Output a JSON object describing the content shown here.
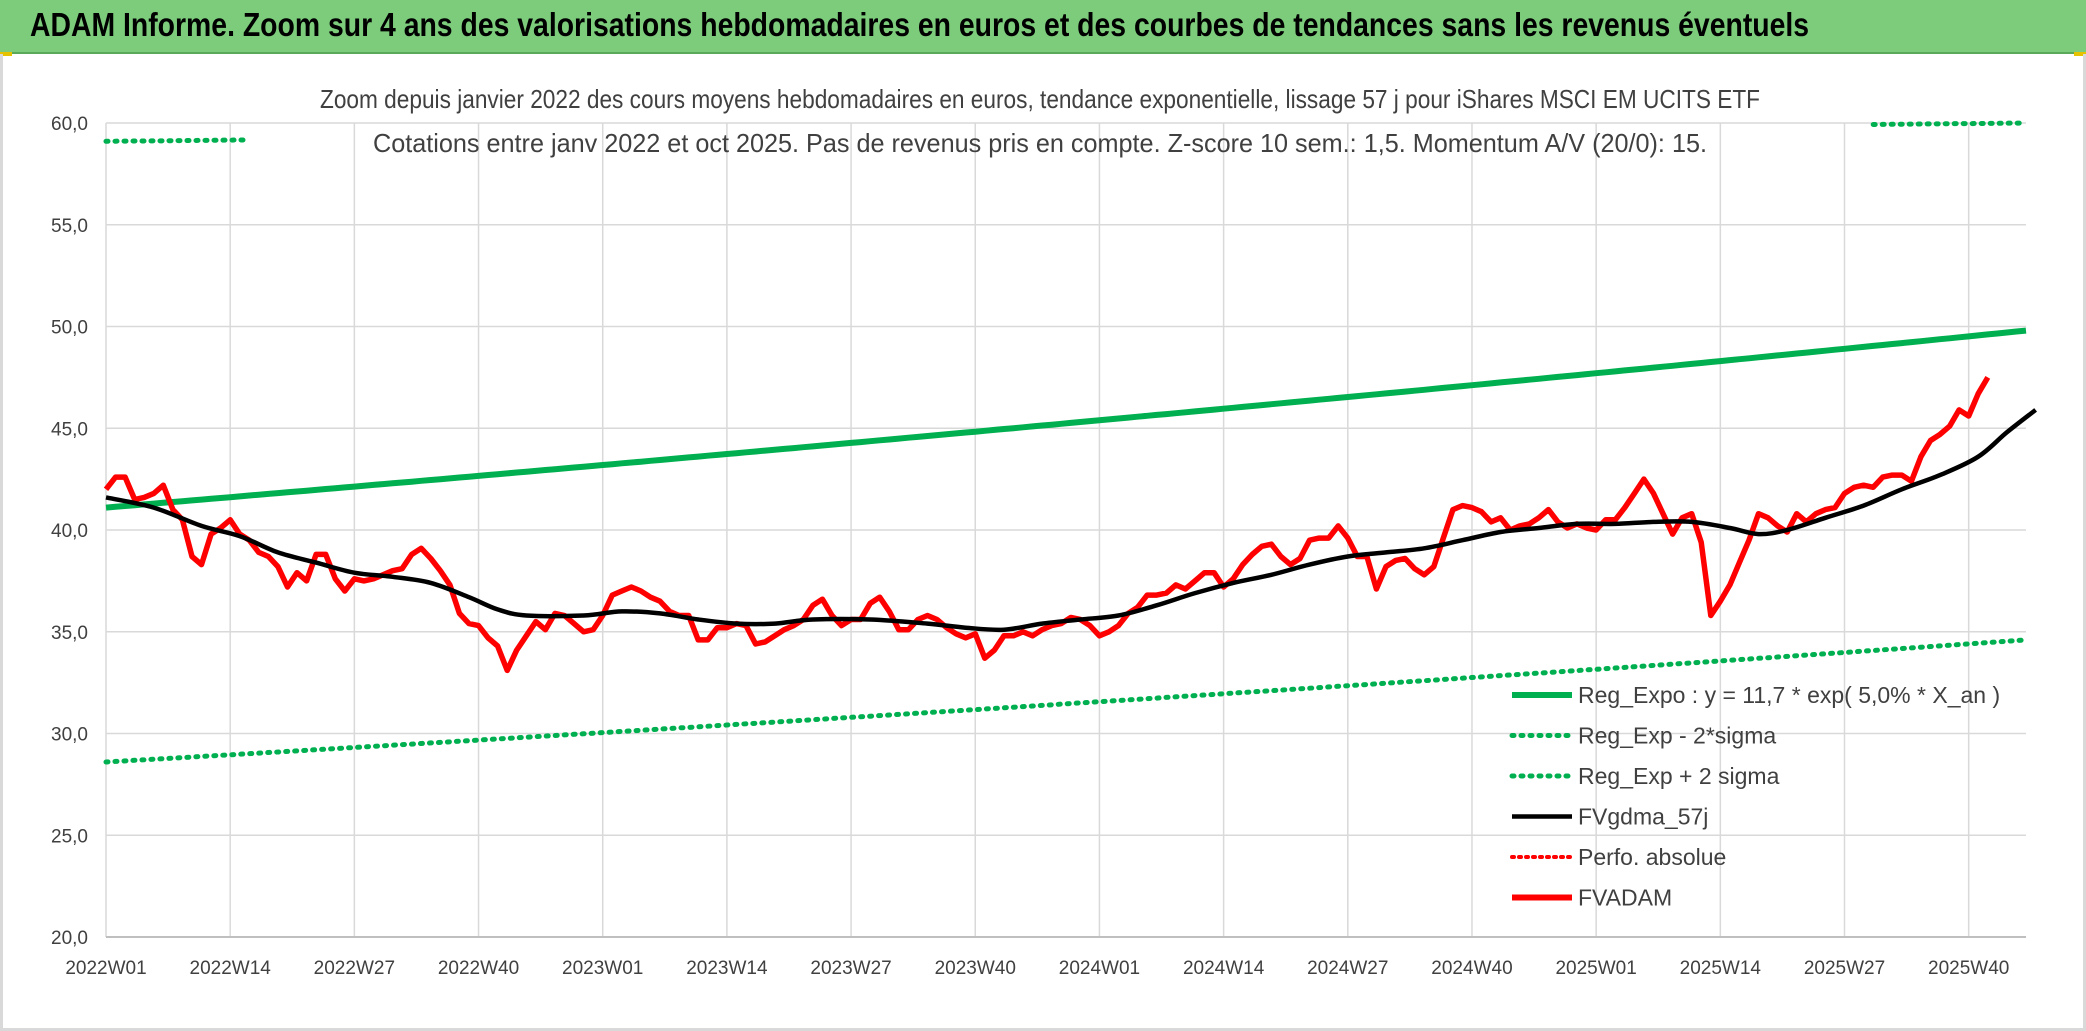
{
  "banner": {
    "title": "ADAM Informe. Zoom sur 4 ans des valorisations hebdomadaires en euros et des courbes de tendances sans les revenus éventuels"
  },
  "chart_data": {
    "type": "line",
    "title_line1": "Zoom depuis janvier 2022 des cours moyens hebdomadaires en euros, tendance exponentielle, lissage 57 j pour iShares MSCI EM UCITS ETF",
    "title_line2": "Cotations entre janv 2022 et oct 2025. Pas de revenus pris en compte. Z-score 10 sem.: 1,5. Momentum A/V (20/0): 15.",
    "x_ticks": [
      "2022W01",
      "2022W14",
      "2022W27",
      "2022W40",
      "2023W01",
      "2023W14",
      "2023W27",
      "2023W40",
      "2024W01",
      "2024W14",
      "2024W27",
      "2024W40",
      "2025W01",
      "2025W14",
      "2025W27",
      "2025W40"
    ],
    "x_tick_index": [
      0,
      13,
      26,
      39,
      52,
      65,
      78,
      91,
      104,
      117,
      130,
      143,
      156,
      169,
      182,
      195
    ],
    "n_weeks": 202,
    "y_ticks": [
      "20,0",
      "25,0",
      "30,0",
      "35,0",
      "40,0",
      "45,0",
      "50,0",
      "55,0",
      "60,0"
    ],
    "ylim": [
      20,
      60
    ],
    "grid": true,
    "legend_position": "bottom-right",
    "colors": {
      "reg_expo": "#00b050",
      "sigma": "#00b050",
      "fvgdma": "#000000",
      "perfo": "#ff0000",
      "fvadam": "#ff0000"
    },
    "legend": [
      {
        "key": "reg_expo",
        "label": "Reg_Expo : y = 11,7 * exp( 5,0% *  X_an )",
        "style": "solid-thick"
      },
      {
        "key": "sigma_minus",
        "label": "Reg_Exp - 2*sigma",
        "style": "dotted"
      },
      {
        "key": "sigma_plus",
        "label": "Reg_Exp + 2 sigma",
        "style": "dotted"
      },
      {
        "key": "fvgdma",
        "label": "FVgdma_57j",
        "style": "solid"
      },
      {
        "key": "perfo",
        "label": "Perfo. absolue",
        "style": "dotted-red"
      },
      {
        "key": "fvadam",
        "label": "FVADAM",
        "style": "solid-thick-red"
      }
    ],
    "series": [
      {
        "name": "Reg_Expo : y = 11,7 * exp( 5,0% *  X_an )",
        "key": "reg_expo",
        "start": 41.1,
        "end": 49.8
      },
      {
        "name": "Reg_Exp - 2*sigma",
        "key": "sigma_minus",
        "start": 28.6,
        "end": 34.6
      },
      {
        "name": "Reg_Exp + 2 sigma",
        "key": "sigma_plus",
        "start": 59.1,
        "end": 60.0,
        "cap": 60.0,
        "visible_ranges": [
          [
            0,
            15
          ],
          [
            185,
            202
          ]
        ]
      },
      {
        "name": "FVgdma_57j",
        "key": "fvgdma",
        "points": [
          [
            0,
            41.6
          ],
          [
            5,
            41.1
          ],
          [
            10,
            40.2
          ],
          [
            14,
            39.7
          ],
          [
            18,
            38.9
          ],
          [
            22,
            38.4
          ],
          [
            26,
            37.9
          ],
          [
            30,
            37.7
          ],
          [
            34,
            37.4
          ],
          [
            38,
            36.7
          ],
          [
            41,
            36.1
          ],
          [
            44,
            35.8
          ],
          [
            50,
            35.8
          ],
          [
            54,
            36.0
          ],
          [
            58,
            35.9
          ],
          [
            62,
            35.6
          ],
          [
            66,
            35.4
          ],
          [
            70,
            35.4
          ],
          [
            74,
            35.6
          ],
          [
            80,
            35.6
          ],
          [
            86,
            35.4
          ],
          [
            90,
            35.2
          ],
          [
            94,
            35.1
          ],
          [
            98,
            35.4
          ],
          [
            102,
            35.6
          ],
          [
            106,
            35.8
          ],
          [
            110,
            36.3
          ],
          [
            114,
            36.9
          ],
          [
            118,
            37.4
          ],
          [
            122,
            37.8
          ],
          [
            126,
            38.3
          ],
          [
            130,
            38.7
          ],
          [
            134,
            38.9
          ],
          [
            138,
            39.1
          ],
          [
            142,
            39.5
          ],
          [
            146,
            39.9
          ],
          [
            150,
            40.1
          ],
          [
            154,
            40.3
          ],
          [
            158,
            40.3
          ],
          [
            162,
            40.4
          ],
          [
            166,
            40.4
          ],
          [
            170,
            40.1
          ],
          [
            173,
            39.8
          ],
          [
            176,
            40.0
          ],
          [
            180,
            40.6
          ],
          [
            184,
            41.2
          ],
          [
            188,
            42.0
          ],
          [
            192,
            42.7
          ],
          [
            196,
            43.6
          ],
          [
            199,
            44.8
          ],
          [
            202,
            45.9
          ]
        ]
      },
      {
        "name": "FVADAM",
        "key": "fvadam",
        "values": [
          42.0,
          42.6,
          42.6,
          41.5,
          41.6,
          41.8,
          42.2,
          41.0,
          40.5,
          38.7,
          38.3,
          39.8,
          40.1,
          40.5,
          39.8,
          39.5,
          38.9,
          38.7,
          38.2,
          37.2,
          37.9,
          37.5,
          38.8,
          38.8,
          37.6,
          37.0,
          37.6,
          37.5,
          37.6,
          37.8,
          38.0,
          38.1,
          38.8,
          39.1,
          38.6,
          38.0,
          37.3,
          35.9,
          35.4,
          35.3,
          34.7,
          34.3,
          33.1,
          34.1,
          34.8,
          35.5,
          35.1,
          35.9,
          35.8,
          35.4,
          35.0,
          35.1,
          35.8,
          36.8,
          37.0,
          37.2,
          37.0,
          36.7,
          36.5,
          36.0,
          35.8,
          35.8,
          34.6,
          34.6,
          35.2,
          35.2,
          35.4,
          35.3,
          34.4,
          34.5,
          34.8,
          35.1,
          35.3,
          35.6,
          36.3,
          36.6,
          35.8,
          35.3,
          35.6,
          35.6,
          36.4,
          36.7,
          36.0,
          35.1,
          35.1,
          35.6,
          35.8,
          35.6,
          35.2,
          34.9,
          34.7,
          34.9,
          33.7,
          34.1,
          34.8,
          34.8,
          35.0,
          34.8,
          35.1,
          35.3,
          35.4,
          35.7,
          35.6,
          35.3,
          34.8,
          35.0,
          35.3,
          35.9,
          36.2,
          36.8,
          36.8,
          36.9,
          37.3,
          37.1,
          37.5,
          37.9,
          37.9,
          37.2,
          37.6,
          38.3,
          38.8,
          39.2,
          39.3,
          38.7,
          38.3,
          38.6,
          39.5,
          39.6,
          39.6,
          40.2,
          39.6,
          38.7,
          38.7,
          37.1,
          38.2,
          38.5,
          38.6,
          38.1,
          37.8,
          38.2,
          39.6,
          41.0,
          41.2,
          41.1,
          40.9,
          40.4,
          40.6,
          40.0,
          40.2,
          40.3,
          40.6,
          41.0,
          40.4,
          40.1,
          40.3,
          40.1,
          40.0,
          40.5,
          40.5,
          41.1,
          41.8,
          42.5,
          41.8,
          40.8,
          39.8,
          40.6,
          40.8,
          39.4,
          35.8,
          36.5,
          37.3,
          38.4,
          39.5,
          40.8,
          40.6,
          40.2,
          39.9,
          40.8,
          40.4,
          40.8,
          41.0,
          41.1,
          41.8,
          42.1,
          42.2,
          42.1,
          42.6,
          42.7,
          42.7,
          42.4,
          43.6,
          44.4,
          44.7,
          45.1,
          45.9,
          45.6,
          46.7,
          47.5
        ]
      }
    ]
  }
}
